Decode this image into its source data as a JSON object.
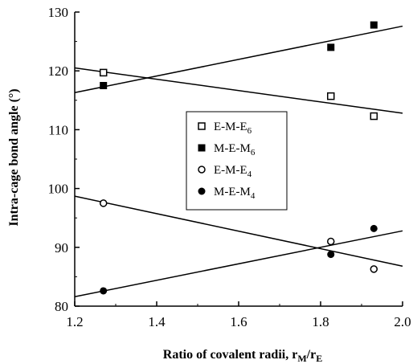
{
  "chart_data": {
    "type": "scatter",
    "xlabel": {
      "main": "Ratio of covalent radii, r",
      "sub1": "M",
      "mid": "/r",
      "sub2": "E"
    },
    "ylabel": "Intra-cage bond angle (°)",
    "xlim": [
      1.2,
      2.0
    ],
    "ylim": [
      80,
      130
    ],
    "xticks": [
      "1.2",
      "1.4",
      "1.6",
      "1.8",
      "2.0"
    ],
    "yticks": [
      "80",
      "90",
      "100",
      "110",
      "120",
      "130"
    ],
    "xtick_values": [
      1.2,
      1.4,
      1.6,
      1.8,
      2.0
    ],
    "ytick_values": [
      80,
      90,
      100,
      110,
      120,
      130
    ],
    "grid": false,
    "legend_position": "center-right",
    "series": [
      {
        "label": {
          "main": "E-M-E",
          "sub": "6"
        },
        "marker": "open-square",
        "points": [
          [
            1.27,
            119.7
          ],
          [
            1.825,
            115.7
          ],
          [
            1.93,
            112.3
          ]
        ],
        "fit": [
          [
            1.2,
            120.5
          ],
          [
            2.0,
            112.8
          ]
        ]
      },
      {
        "label": {
          "main": "M-E-M",
          "sub": "6"
        },
        "marker": "filled-square",
        "points": [
          [
            1.27,
            117.5
          ],
          [
            1.825,
            124.0
          ],
          [
            1.93,
            127.8
          ]
        ],
        "fit": [
          [
            1.2,
            116.3
          ],
          [
            2.0,
            127.6
          ]
        ]
      },
      {
        "label": {
          "main": "E-M-E",
          "sub": "4"
        },
        "marker": "open-circle",
        "points": [
          [
            1.27,
            97.5
          ],
          [
            1.825,
            91.0
          ],
          [
            1.93,
            86.3
          ]
        ],
        "fit": [
          [
            1.2,
            98.7
          ],
          [
            2.0,
            86.8
          ]
        ]
      },
      {
        "label": {
          "main": "M-E-M",
          "sub": "4"
        },
        "marker": "filled-circle",
        "points": [
          [
            1.27,
            82.6
          ],
          [
            1.825,
            88.8
          ],
          [
            1.93,
            93.2
          ]
        ],
        "fit": [
          [
            1.2,
            81.6
          ],
          [
            2.0,
            92.8
          ]
        ]
      }
    ]
  }
}
